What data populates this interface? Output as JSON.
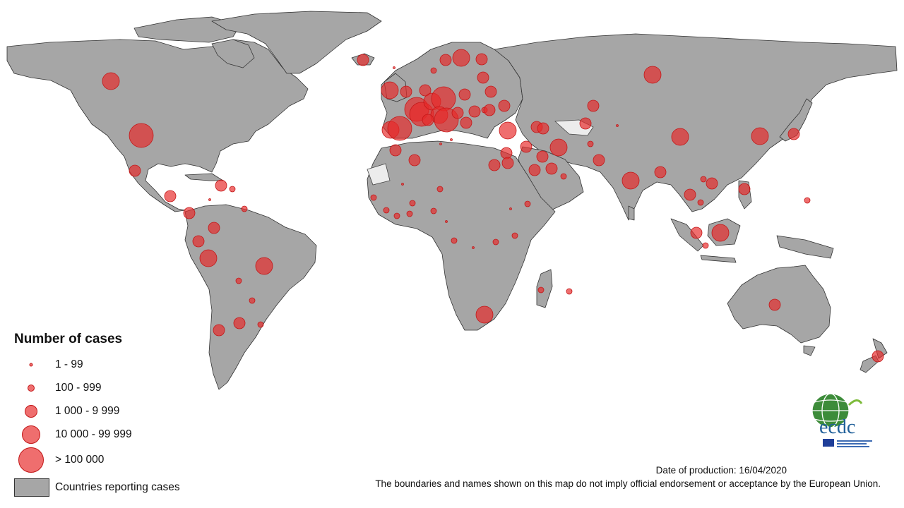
{
  "legend": {
    "title": "Number of cases",
    "classes": [
      {
        "label": "1 - 99",
        "class": 1
      },
      {
        "label": "100 - 999",
        "class": 2
      },
      {
        "label": "1 000 - 9 999",
        "class": 3
      },
      {
        "label": "10 000 - 99 999",
        "class": 4
      },
      {
        "label": "> 100 000",
        "class": 5
      }
    ],
    "countries_label": "Countries reporting cases"
  },
  "footer": {
    "date_of_production": "Date of production:  16/04/2020",
    "disclaimer": "The boundaries and names shown on this map do not imply official endorsement or acceptance by the European Union."
  },
  "logo": {
    "text": "ecdc"
  },
  "colors": {
    "land": "#a6a6a6",
    "bubble": "#e8292a",
    "border": "#333333"
  }
}
